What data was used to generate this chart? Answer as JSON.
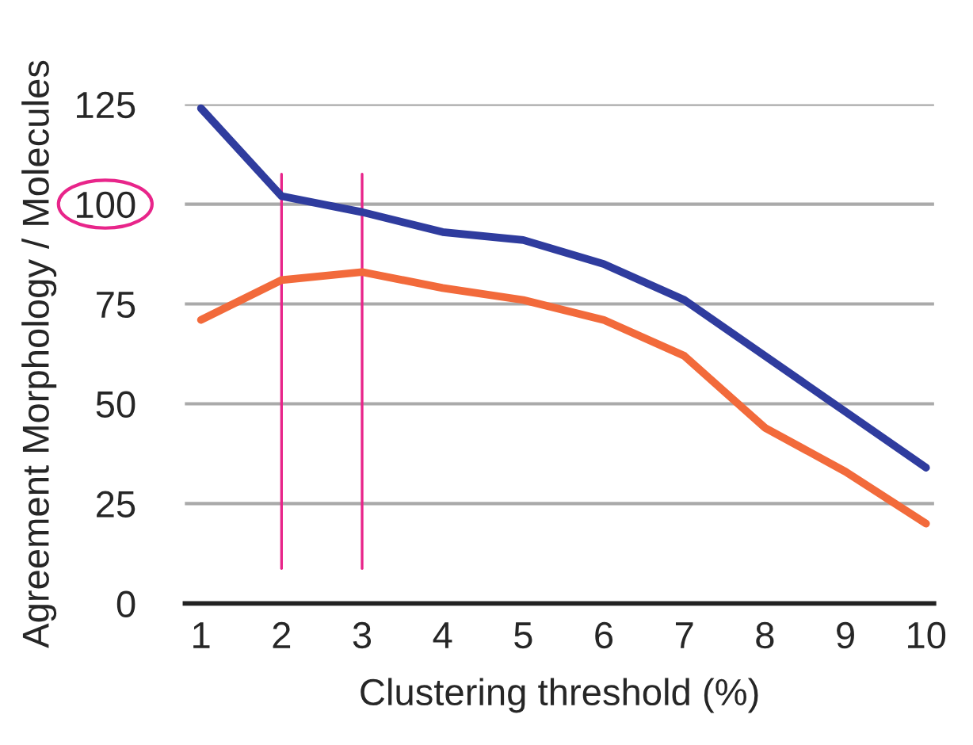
{
  "chart_data": {
    "type": "line",
    "xlabel": "Clustering threshold (%)",
    "ylabel": "Agreement Morphology / Molecules",
    "x": [
      1,
      2,
      3,
      4,
      5,
      6,
      7,
      8,
      9,
      10
    ],
    "series": [
      {
        "color": "#2f3c9e",
        "values": [
          124,
          102,
          98,
          93,
          91,
          85,
          76,
          62,
          48,
          34
        ]
      },
      {
        "color": "#f26a3b",
        "values": [
          71,
          81,
          83,
          79,
          76,
          71,
          62,
          44,
          33,
          20
        ]
      }
    ],
    "xlim": [
      0.8,
      10.1
    ],
    "xticks": [
      1,
      2,
      3,
      4,
      5,
      6,
      7,
      8,
      9,
      10
    ],
    "ylim": [
      0,
      125
    ],
    "yticks": [
      0,
      25,
      50,
      75,
      100,
      125
    ],
    "ref_lines": [
      {
        "axis": "x",
        "value": 2,
        "color": "#e8258a"
      },
      {
        "axis": "x",
        "value": 3,
        "color": "#e8258a"
      }
    ],
    "grid": "y",
    "marker": "none",
    "line_style": "solid",
    "legend": false
  }
}
